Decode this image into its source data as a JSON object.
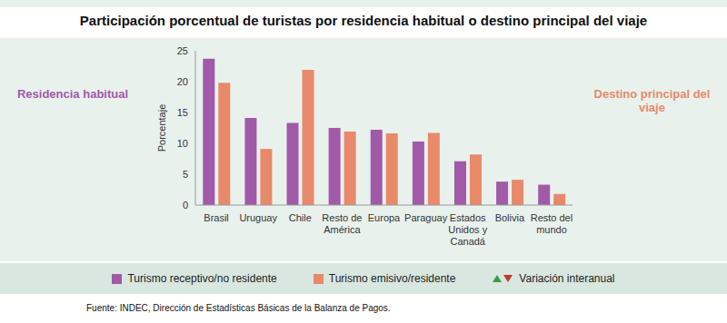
{
  "chart_data": {
    "type": "bar",
    "title": "Participación porcentual de turistas por residencia habitual o destino principal del viaje",
    "y_label": "Porcentaje",
    "left_label": "Residencia habitual",
    "right_label": "Destino principal del viaje",
    "legend_note": "Variación interanual",
    "source": "Fuente: INDEC, Dirección de Estadísticas Básicas de la Balanza de Pagos.",
    "categories": [
      "Brasil",
      "Uruguay",
      "Chile",
      "Resto de América",
      "Europa",
      "Paraguay",
      "Estados Unidos y Canadá",
      "Bolivia",
      "Resto del mundo"
    ],
    "series": [
      {
        "name": "Turismo receptivo/no residente",
        "color": "#a05aa8",
        "values": [
          23.7,
          14.1,
          13.3,
          12.5,
          12.2,
          10.3,
          7.1,
          3.8,
          3.3
        ]
      },
      {
        "name": "Turismo emisivo/residente",
        "color": "#e8896a",
        "values": [
          19.8,
          9.1,
          21.9,
          11.9,
          11.6,
          11.7,
          8.2,
          4.1,
          1.8
        ]
      }
    ],
    "ylim": [
      0,
      25
    ],
    "yticks": [
      0,
      5,
      10,
      15,
      20,
      25
    ],
    "grid": false,
    "legend": "bottom"
  }
}
